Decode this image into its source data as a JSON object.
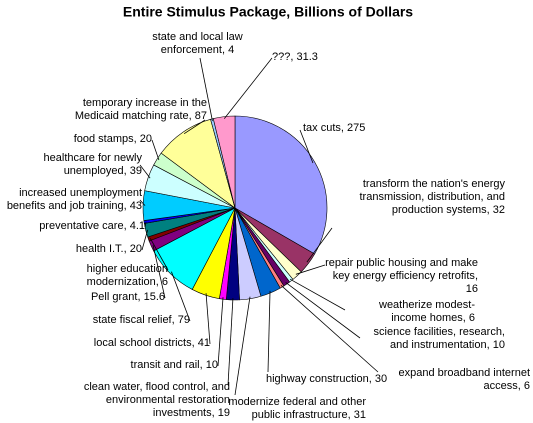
{
  "chart_data": {
    "type": "pie",
    "title": "Entire Stimulus Package, Billions of Dollars",
    "categories": [
      "tax cuts",
      "transform the nation's energy transmission, distribution, and production systems",
      "repair public housing and make key energy efficiency retrofits",
      "weatherize modest-income homes",
      "science facilities, research, and instrumentation",
      "expand broadband internet access",
      "highway construction",
      "modernize federal and other public infrastructure",
      "clean water, flood control, and environmental restoration investments",
      "transit and rail",
      "local school districts",
      "state fiscal relief",
      "Pell grant",
      "higher education modernization",
      "health I.T.",
      "preventative care",
      "increased unemployment benefits and job training",
      "healthcare for newly unemployed",
      "food stamps",
      "temporary increase in the Medicaid matching rate",
      "state and local law enforcement",
      "???"
    ],
    "values": [
      275,
      32,
      16,
      6,
      10,
      6,
      30,
      31,
      19,
      10,
      41,
      79,
      15.6,
      6,
      20,
      4.1,
      43,
      39,
      20,
      87,
      4,
      31.3
    ],
    "colors": [
      "#9999ff",
      "#993366",
      "#ffffcc",
      "#ccffff",
      "#660066",
      "#ff8080",
      "#0066cc",
      "#ccccff",
      "#000080",
      "#ff00ff",
      "#ffff00",
      "#00ffff",
      "#800080",
      "#800000",
      "#008080",
      "#0000ff",
      "#00ccff",
      "#ccffff",
      "#ccffcc",
      "#ffff99",
      "#99ccff",
      "#ff99cc"
    ]
  }
}
